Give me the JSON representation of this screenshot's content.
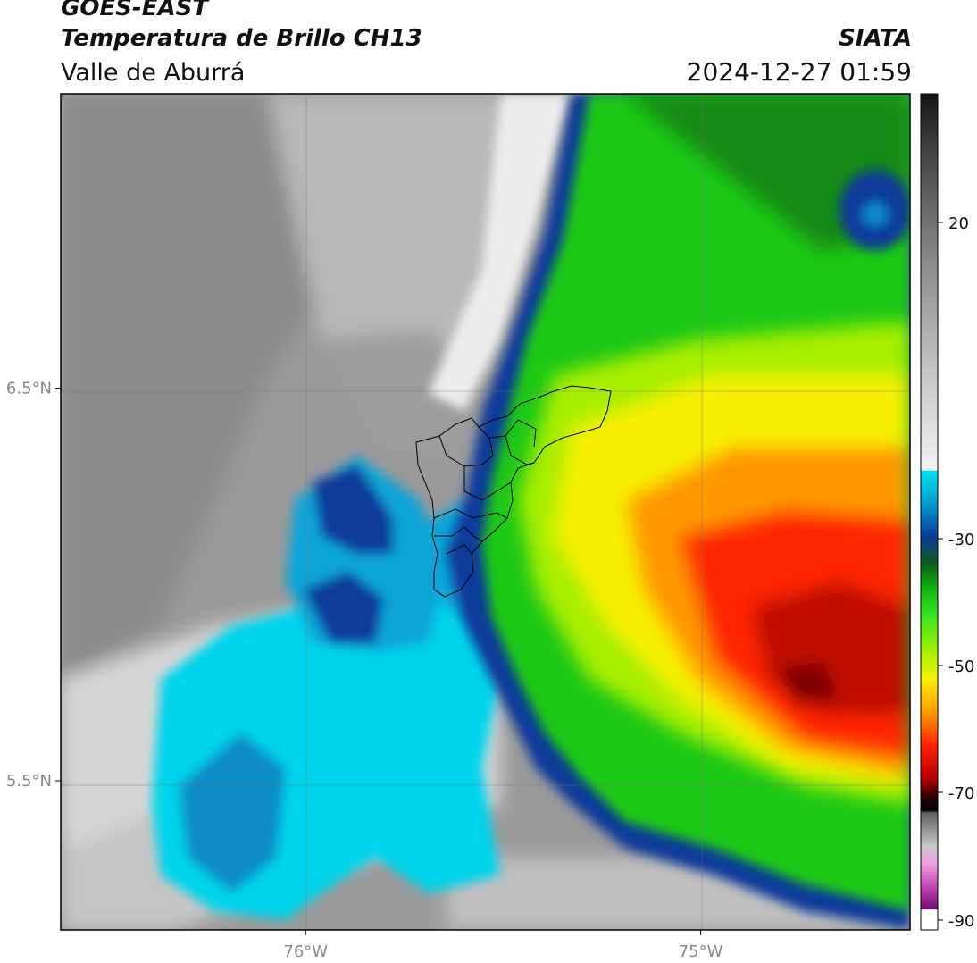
{
  "header": {
    "satellite": "GOES-EAST",
    "product": "Temperatura de Brillo CH13",
    "region": "Valle de Aburrá",
    "agency": "SIATA",
    "datetime": "2024-12-27 01:59"
  },
  "map": {
    "lat_ticks": [
      {
        "value": 6.5,
        "label": "6.5°N"
      },
      {
        "value": 5.5,
        "label": "5.5°N"
      }
    ],
    "lon_ticks": [
      {
        "value": -76,
        "label": "76°W"
      },
      {
        "value": -75,
        "label": "75°W"
      }
    ],
    "extent": {
      "lon_min": -76.62,
      "lon_max": -74.47,
      "lat_min": 5.12,
      "lat_max": 7.25
    },
    "colors": {
      "cloud_cold_red": "#e01000",
      "green": "#1ecc10",
      "yellow": "#f6f000",
      "blue": "#0a3a9a",
      "cyan": "#00d8ee",
      "gray_land": "#8c8c8c"
    }
  },
  "colorbar": {
    "ticks": [
      {
        "value": 20,
        "label": "20"
      },
      {
        "value": -30,
        "label": "-30"
      },
      {
        "value": -50,
        "label": "-50"
      },
      {
        "value": -70,
        "label": "-70"
      },
      {
        "value": -90,
        "label": "-90"
      }
    ]
  }
}
